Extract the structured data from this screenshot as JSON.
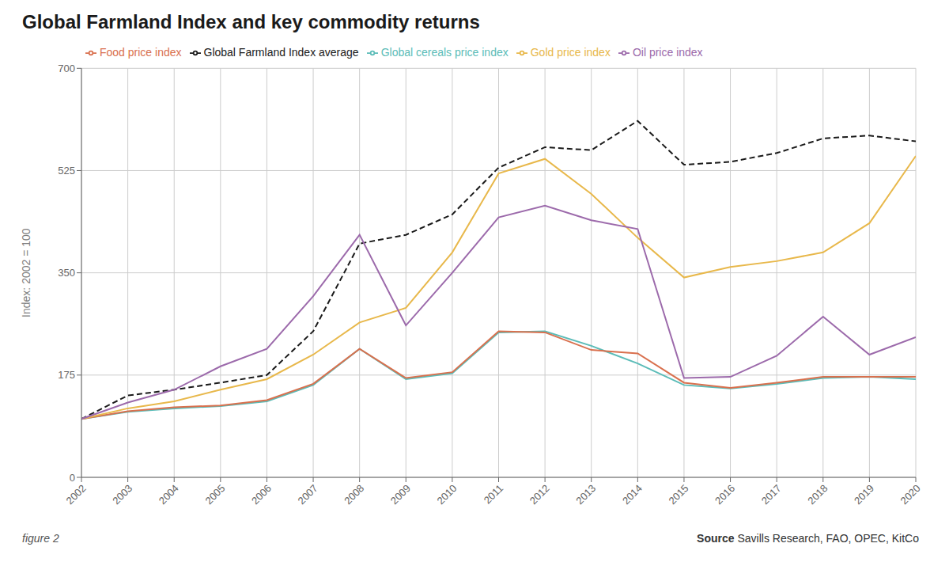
{
  "chart_data": {
    "type": "line",
    "title": "Global Farmland Index and key commodity returns",
    "y_label": "Index: 2002 = 100",
    "x": [
      2002,
      2003,
      2004,
      2005,
      2006,
      2007,
      2008,
      2009,
      2010,
      2011,
      2012,
      2013,
      2014,
      2015,
      2016,
      2017,
      2018,
      2019,
      2020
    ],
    "xlim": [
      2002,
      2020
    ],
    "xticks": [
      2002,
      2003,
      2004,
      2005,
      2006,
      2007,
      2008,
      2009,
      2010,
      2011,
      2012,
      2013,
      2014,
      2015,
      2016,
      2017,
      2018,
      2019,
      2020
    ],
    "ylim": [
      0,
      700
    ],
    "yticks": [
      0,
      175,
      350,
      525,
      700
    ],
    "grid": true,
    "legend": "top",
    "series": [
      {
        "name": "Global Farmland Index average",
        "color": "#1a1a1a",
        "line_style": "dashed",
        "values": [
          100,
          140,
          150,
          162,
          175,
          250,
          400,
          415,
          450,
          530,
          565,
          560,
          610,
          535,
          540,
          555,
          580,
          585,
          575
        ]
      },
      {
        "name": "Global cereals price index",
        "color": "#5bbcb8",
        "line_style": "solid",
        "values": [
          100,
          112,
          118,
          122,
          130,
          158,
          220,
          168,
          178,
          248,
          250,
          225,
          195,
          158,
          152,
          160,
          170,
          172,
          168
        ]
      },
      {
        "name": "Food price index",
        "color": "#d9704e",
        "line_style": "solid",
        "values": [
          100,
          113,
          120,
          123,
          132,
          160,
          220,
          170,
          180,
          250,
          248,
          218,
          212,
          162,
          153,
          162,
          172,
          172,
          172
        ]
      },
      {
        "name": "Gold price index",
        "color": "#e8b84b",
        "line_style": "solid",
        "values": [
          100,
          118,
          130,
          150,
          168,
          210,
          265,
          290,
          385,
          520,
          545,
          485,
          410,
          342,
          360,
          370,
          385,
          435,
          550
        ]
      },
      {
        "name": "Oil price index",
        "color": "#9c6aab",
        "line_style": "solid",
        "values": [
          100,
          128,
          150,
          190,
          220,
          310,
          415,
          260,
          350,
          445,
          465,
          440,
          425,
          170,
          172,
          208,
          275,
          210,
          240
        ]
      }
    ],
    "annotations": [
      "figure 2",
      "Source",
      "Savills Research, FAO, OPEC, KitCo"
    ]
  }
}
